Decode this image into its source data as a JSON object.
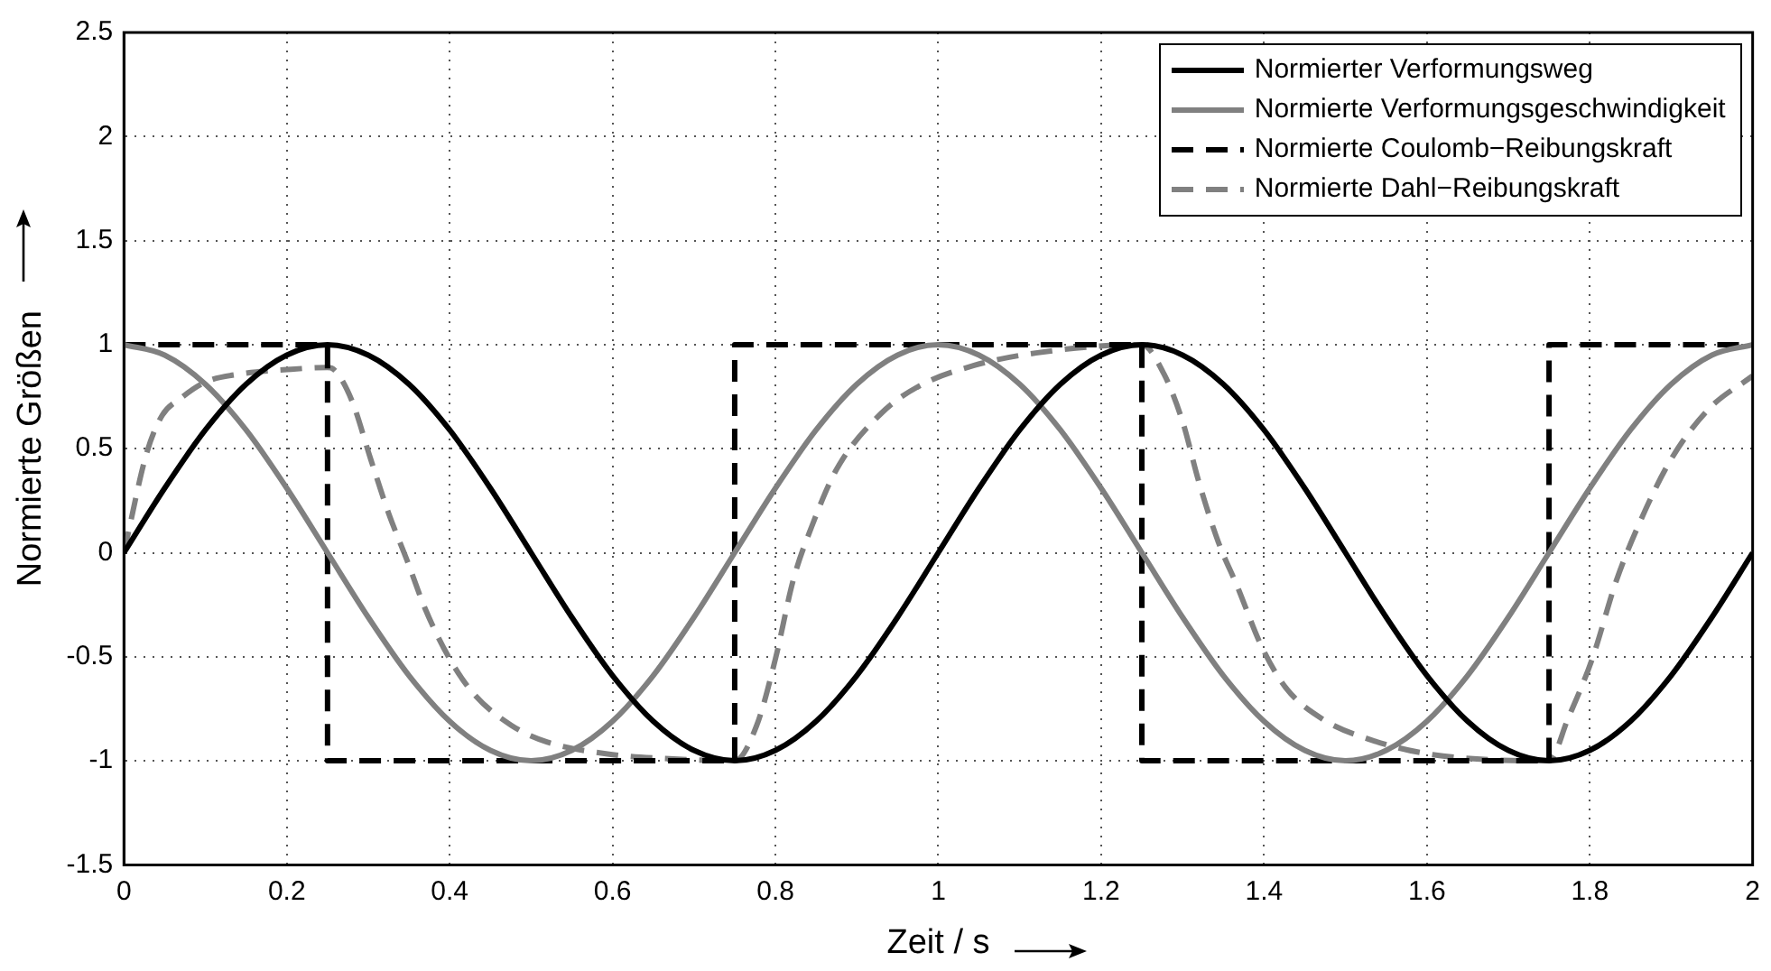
{
  "chart_data": {
    "type": "line",
    "xlabel": "Zeit / s",
    "ylabel": "Normierte Größen",
    "x": [
      0,
      0.05,
      0.1,
      0.15,
      0.2,
      0.25,
      0.3,
      0.35,
      0.4,
      0.45,
      0.5,
      0.55,
      0.6,
      0.65,
      0.7,
      0.75,
      0.8,
      0.85,
      0.9,
      0.95,
      1,
      1.05,
      1.1,
      1.15,
      1.2,
      1.25,
      1.3,
      1.35,
      1.4,
      1.45,
      1.5,
      1.55,
      1.6,
      1.65,
      1.7,
      1.75,
      1.8,
      1.85,
      1.9,
      1.95,
      2
    ],
    "series": [
      {
        "name": "Normierter Verformungsweg",
        "color": "#000000",
        "line_style": "solid",
        "values": [
          0,
          0.31,
          0.59,
          0.81,
          0.95,
          1,
          0.95,
          0.81,
          0.59,
          0.31,
          0,
          -0.31,
          -0.59,
          -0.81,
          -0.95,
          -1,
          -0.95,
          -0.81,
          -0.59,
          -0.31,
          0,
          0.31,
          0.59,
          0.81,
          0.95,
          1,
          0.95,
          0.81,
          0.59,
          0.31,
          0,
          -0.31,
          -0.59,
          -0.81,
          -0.95,
          -1,
          -0.95,
          -0.81,
          -0.59,
          -0.31,
          0
        ]
      },
      {
        "name": "Normierte Verformungsgeschwindigkeit",
        "color": "#808080",
        "line_style": "solid",
        "values": [
          1,
          0.95,
          0.81,
          0.59,
          0.31,
          0,
          -0.31,
          -0.59,
          -0.81,
          -0.95,
          -1,
          -0.95,
          -0.81,
          -0.59,
          -0.31,
          0,
          0.31,
          0.59,
          0.81,
          0.95,
          1,
          0.95,
          0.81,
          0.59,
          0.31,
          0,
          -0.31,
          -0.59,
          -0.81,
          -0.95,
          -1,
          -0.95,
          -0.81,
          -0.59,
          -0.31,
          0,
          0.31,
          0.59,
          0.81,
          0.95,
          1
        ]
      },
      {
        "name": "Normierte Coulomb−Reibungskraft",
        "color": "#000000",
        "line_style": "dashed",
        "x": [
          0,
          0.25,
          0.25,
          0.75,
          0.75,
          1.25,
          1.25,
          1.75,
          1.75,
          2
        ],
        "values": [
          1,
          1,
          -1,
          -1,
          1,
          1,
          -1,
          -1,
          1,
          1
        ]
      },
      {
        "name": "Normierte Dahl−Reibungskraft",
        "color": "#808080",
        "line_style": "dashed",
        "x": [
          0,
          0.028,
          0.047,
          0.069,
          0.1,
          0.145,
          0.2,
          0.25,
          0.258,
          0.28,
          0.303,
          0.325,
          0.348,
          0.37,
          0.4,
          0.43,
          0.476,
          0.52,
          0.6,
          0.67,
          0.75,
          0.777,
          0.8,
          0.822,
          0.845,
          0.875,
          0.93,
          0.976,
          1.044,
          1.12,
          1.25,
          1.277,
          1.3,
          1.32,
          1.344,
          1.367,
          1.397,
          1.427,
          1.472,
          1.532,
          1.607,
          1.75,
          1.773,
          1.803,
          1.833,
          1.863,
          1.9,
          1.946,
          2
        ],
        "values": [
          0,
          0.48,
          0.66,
          0.74,
          0.82,
          0.86,
          0.88,
          0.89,
          0.88,
          0.73,
          0.45,
          0.19,
          -0.04,
          -0.27,
          -0.51,
          -0.68,
          -0.83,
          -0.91,
          -0.97,
          -0.99,
          -1,
          -0.83,
          -0.51,
          -0.13,
          0.13,
          0.4,
          0.67,
          0.8,
          0.9,
          0.96,
          1,
          0.86,
          0.63,
          0.34,
          0.05,
          -0.16,
          -0.45,
          -0.65,
          -0.8,
          -0.9,
          -0.97,
          -1,
          -0.8,
          -0.51,
          -0.13,
          0.16,
          0.45,
          0.69,
          0.85
        ]
      }
    ],
    "xlim": [
      0,
      2
    ],
    "xticks": [
      0,
      0.2,
      0.4,
      0.6,
      0.8,
      1,
      1.2,
      1.4,
      1.6,
      1.8,
      2
    ],
    "ylim": [
      -1.5,
      2.5
    ],
    "yticks": [
      -1.5,
      -1,
      -0.5,
      0,
      0.5,
      1,
      1.5,
      2,
      2.5
    ],
    "grid": true,
    "legend": "top right",
    "marker": "none"
  }
}
